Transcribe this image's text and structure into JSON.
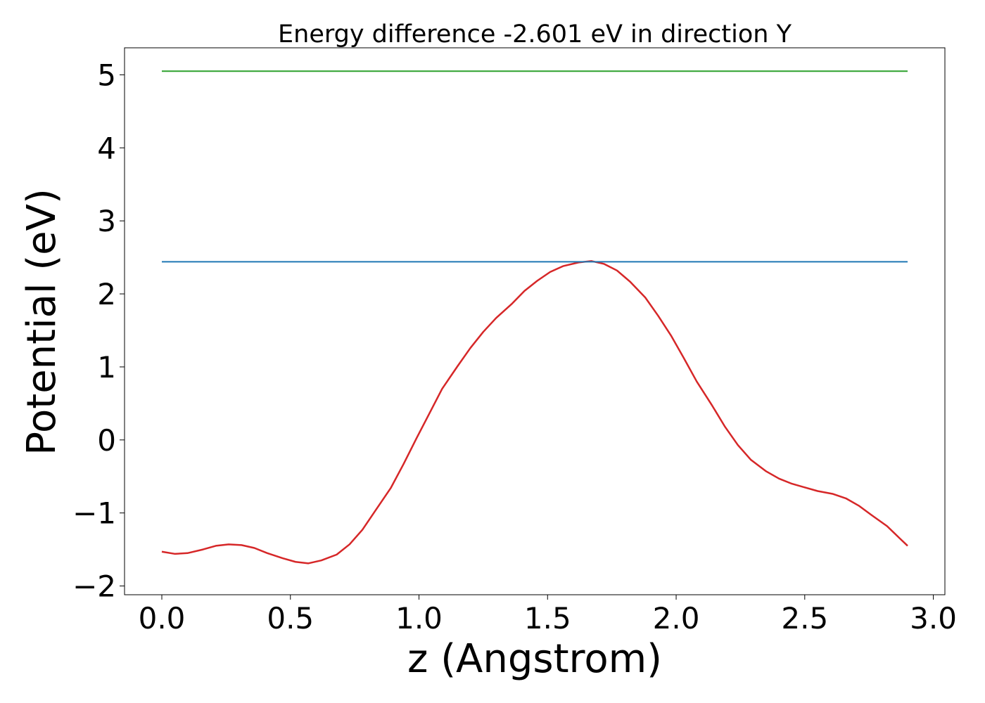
{
  "chart_data": {
    "type": "line",
    "title": "Energy difference -2.601 eV in direction Y",
    "xlabel": "z (Angstrom)",
    "ylabel": "Potential (eV)",
    "xlim": [
      -0.145,
      3.045
    ],
    "ylim": [
      -2.12,
      5.37
    ],
    "xticks": [
      0.0,
      0.5,
      1.0,
      1.5,
      2.0,
      2.5,
      3.0
    ],
    "xtick_labels": [
      "0.0",
      "0.5",
      "1.0",
      "1.5",
      "2.0",
      "2.5",
      "3.0"
    ],
    "yticks": [
      -2,
      -1,
      0,
      1,
      2,
      3,
      4,
      5
    ],
    "ytick_labels": [
      "−2",
      "−1",
      "0",
      "1",
      "2",
      "3",
      "4",
      "5"
    ],
    "grid": false,
    "series": [
      {
        "color": "#d62728",
        "x": [
          0.0,
          0.05,
          0.1,
          0.16,
          0.21,
          0.26,
          0.31,
          0.36,
          0.41,
          0.47,
          0.52,
          0.57,
          0.62,
          0.68,
          0.73,
          0.78,
          0.83,
          0.89,
          0.94,
          0.99,
          1.04,
          1.09,
          1.15,
          1.2,
          1.25,
          1.3,
          1.36,
          1.41,
          1.46,
          1.51,
          1.56,
          1.62,
          1.67,
          1.72,
          1.77,
          1.82,
          1.88,
          1.93,
          1.98,
          2.03,
          2.08,
          2.14,
          2.19,
          2.24,
          2.29,
          2.35,
          2.4,
          2.45,
          2.5,
          2.55,
          2.61,
          2.66,
          2.71,
          2.76,
          2.82,
          2.87,
          2.9
        ],
        "values": [
          -1.53,
          -1.56,
          -1.55,
          -1.5,
          -1.45,
          -1.43,
          -1.44,
          -1.48,
          -1.55,
          -1.62,
          -1.67,
          -1.69,
          -1.65,
          -1.57,
          -1.43,
          -1.23,
          -0.97,
          -0.66,
          -0.33,
          0.02,
          0.36,
          0.7,
          1.01,
          1.26,
          1.48,
          1.67,
          1.86,
          2.04,
          2.18,
          2.3,
          2.38,
          2.43,
          2.45,
          2.41,
          2.32,
          2.17,
          1.95,
          1.7,
          1.43,
          1.12,
          0.8,
          0.47,
          0.18,
          -0.07,
          -0.27,
          -0.43,
          -0.53,
          -0.6,
          -0.65,
          -0.7,
          -0.74,
          -0.8,
          -0.9,
          -1.03,
          -1.18,
          -1.35,
          -1.45
        ]
      },
      {
        "color": "#1f77b4",
        "x": [
          0.0,
          2.9
        ],
        "values": [
          2.44,
          2.44
        ]
      },
      {
        "color": "#2ca02c",
        "x": [
          0.0,
          2.9
        ],
        "values": [
          5.05,
          5.05
        ]
      }
    ]
  }
}
